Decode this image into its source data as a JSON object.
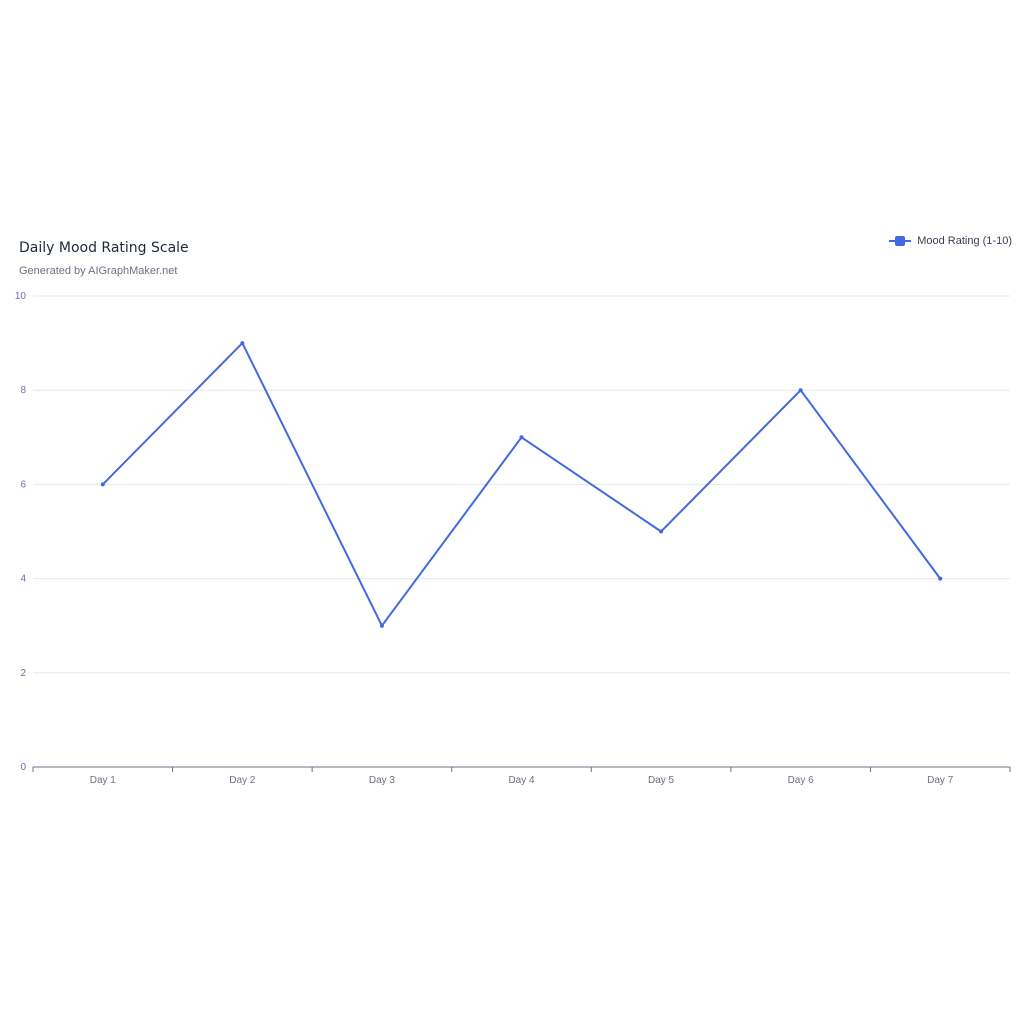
{
  "chart_data": {
    "type": "line",
    "title": "Daily Mood Rating Scale",
    "subtitle": "Generated by AIGraphMaker.net",
    "categories": [
      "Day 1",
      "Day 2",
      "Day 3",
      "Day 4",
      "Day 5",
      "Day 6",
      "Day 7"
    ],
    "series": [
      {
        "name": "Mood Rating (1-10)",
        "values": [
          6,
          9,
          3,
          7,
          5,
          8,
          4
        ]
      }
    ],
    "yticks": [
      0,
      2,
      4,
      6,
      8,
      10
    ],
    "ylim": [
      0,
      10
    ],
    "grid": true,
    "legend_position": "top-right",
    "colors": {
      "series": "#4169e1",
      "grid": "#e5e7eb",
      "axis": "#6b7280"
    }
  }
}
